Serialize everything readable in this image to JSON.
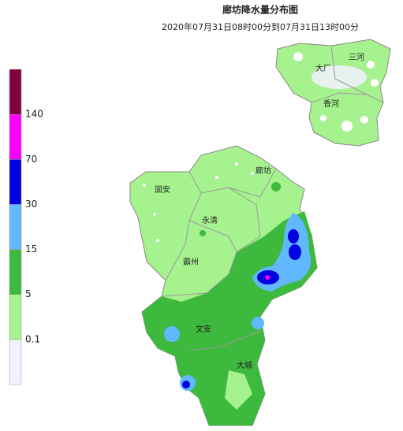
{
  "header": {
    "title": "廊坊降水量分布图",
    "subtitle": "2020年07月31日08时00分到07月31日13时00分"
  },
  "legend": {
    "items": [
      {
        "label": "0.1",
        "color": "#eef2fb"
      },
      {
        "label": "5",
        "color": "#a6f28f"
      },
      {
        "label": "15",
        "color": "#3dba3d"
      },
      {
        "label": "30",
        "color": "#61b8ff"
      },
      {
        "label": "70",
        "color": "#0000e1"
      },
      {
        "label": "140",
        "color": "#fa00fa"
      },
      {
        "label": null,
        "color": "#800040"
      }
    ]
  },
  "places": [
    "廊坊",
    "固安",
    "永清",
    "霸州",
    "文安",
    "大城",
    "大厂",
    "三河",
    "香河"
  ]
}
